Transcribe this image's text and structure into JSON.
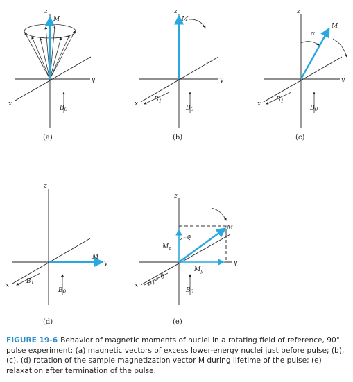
{
  "figure": {
    "axis_labels": {
      "z": "z",
      "y": "y",
      "x": "x"
    },
    "field_labels": {
      "B0": "B",
      "B0_sub": "0",
      "B1": "B",
      "B1_sub": "1",
      "B1_zero": "= 0"
    },
    "vector_labels": {
      "M": "M",
      "Mz": "M",
      "Mz_sub": "z",
      "My": "M",
      "My_sub": "y",
      "alpha": "α"
    },
    "panels": [
      {
        "id": "a",
        "caption": "(a)"
      },
      {
        "id": "b",
        "caption": "(b)"
      },
      {
        "id": "c",
        "caption": "(c)"
      },
      {
        "id": "d",
        "caption": "(d)"
      },
      {
        "id": "e",
        "caption": "(e)"
      }
    ],
    "colors": {
      "vector": "#29a8e0",
      "caption_label": "#2a8cc8"
    }
  },
  "caption": {
    "label": "FIGURE 19-6",
    "text": "Behavior of magnetic moments of nuclei in a rotating field of reference, 90° pulse experiment: (a) magnetic vectors of excess lower-energy nuclei just before pulse; (b), (c), (d) rotation of the sample magnetization vector M during lifetime of the pulse; (e) relaxation after termination of the pulse."
  }
}
